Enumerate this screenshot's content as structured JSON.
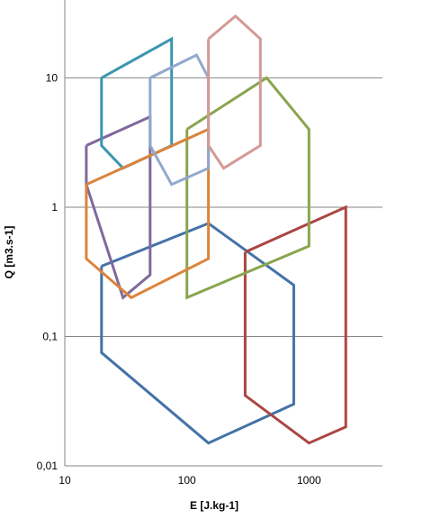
{
  "chart_data": {
    "type": "line",
    "title": "",
    "xlabel": "E [J.kg-1]",
    "ylabel": "Q [m3.s-1]",
    "x_scale": "log",
    "y_scale": "log",
    "xlim": [
      10,
      4000
    ],
    "ylim": [
      0.01,
      40
    ],
    "x_ticks": [
      10,
      100,
      1000
    ],
    "x_tick_labels": [
      "10",
      "100",
      "1000"
    ],
    "y_ticks": [
      0.01,
      0.1,
      1,
      10
    ],
    "y_tick_labels": [
      "0,01",
      "0,1",
      "1",
      "10"
    ],
    "grid": "horizontal",
    "legend": "none",
    "series": [
      {
        "color": "#4572a7",
        "points": [
          [
            20,
            0.35
          ],
          [
            150,
            0.75
          ],
          [
            750,
            0.25
          ],
          [
            750,
            0.03
          ],
          [
            150,
            0.015
          ],
          [
            20,
            0.075
          ],
          [
            20,
            0.35
          ]
        ]
      },
      {
        "color": "#aa4643",
        "points": [
          [
            300,
            0.45
          ],
          [
            2000,
            1.0
          ],
          [
            2000,
            0.02
          ],
          [
            1000,
            0.015
          ],
          [
            300,
            0.035
          ],
          [
            300,
            0.45
          ]
        ]
      },
      {
        "color": "#89a54e",
        "points": [
          [
            100,
            4.0
          ],
          [
            450,
            10.0
          ],
          [
            1000,
            4.0
          ],
          [
            1000,
            0.5
          ],
          [
            100,
            0.2
          ],
          [
            100,
            4.0
          ]
        ]
      },
      {
        "color": "#80699b",
        "points": [
          [
            15,
            3.0
          ],
          [
            50,
            5.0
          ],
          [
            50,
            0.3
          ],
          [
            30,
            0.2
          ],
          [
            15,
            1.5
          ],
          [
            15,
            3.0
          ]
        ]
      },
      {
        "color": "#3d96ae",
        "points": [
          [
            20,
            10.0
          ],
          [
            75,
            20.0
          ],
          [
            75,
            3.0
          ],
          [
            30,
            2.0
          ],
          [
            20,
            3.0
          ],
          [
            20,
            10.0
          ]
        ]
      },
      {
        "color": "#db843d",
        "points": [
          [
            15,
            1.5
          ],
          [
            150,
            4.0
          ],
          [
            150,
            0.4
          ],
          [
            35,
            0.2
          ],
          [
            15,
            0.4
          ],
          [
            15,
            1.5
          ]
        ]
      },
      {
        "color": "#92a8cd",
        "points": [
          [
            50,
            10.0
          ],
          [
            120,
            15.0
          ],
          [
            150,
            10.0
          ],
          [
            150,
            2.0
          ],
          [
            75,
            1.5
          ],
          [
            50,
            3.0
          ],
          [
            50,
            10.0
          ]
        ]
      },
      {
        "color": "#d49a96",
        "points": [
          [
            150,
            20.0
          ],
          [
            250,
            30.0
          ],
          [
            400,
            20.0
          ],
          [
            400,
            3.0
          ],
          [
            200,
            2.0
          ],
          [
            150,
            3.0
          ],
          [
            150,
            20.0
          ]
        ]
      }
    ]
  }
}
